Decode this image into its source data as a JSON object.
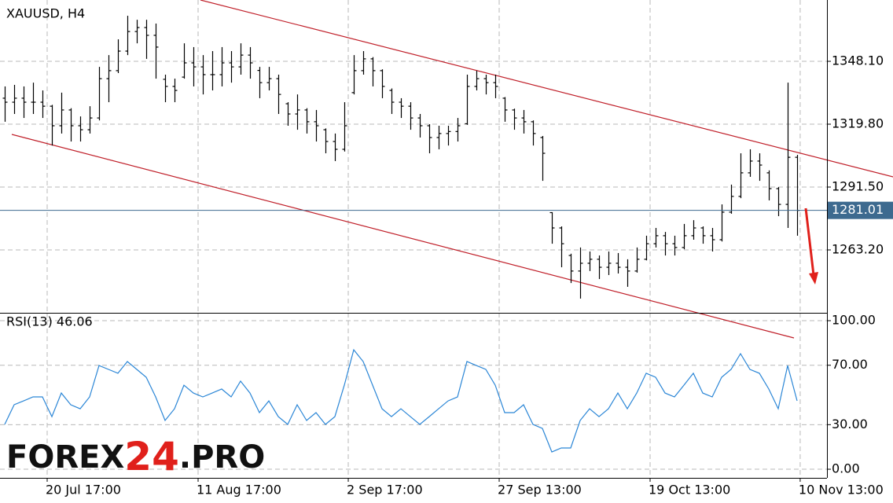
{
  "chart_data": [
    {
      "type": "ohlc",
      "title": "XAUUSD, H4",
      "color": "#000000",
      "ohlc": [
        [
          1331.5,
          1336.8,
          1320.9,
          1329.7
        ],
        [
          1329.7,
          1337.5,
          1324.4,
          1331.5
        ],
        [
          1331.5,
          1336.8,
          1322.6,
          1329.7
        ],
        [
          1329.7,
          1338.5,
          1324.4,
          1329.7
        ],
        [
          1329.7,
          1335.0,
          1322.6,
          1327.9
        ],
        [
          1327.9,
          1328.5,
          1310.2,
          1319.1
        ],
        [
          1319.1,
          1334.0,
          1315.6,
          1326.2
        ],
        [
          1326.2,
          1327.0,
          1312.0,
          1319.1
        ],
        [
          1319.1,
          1323.3,
          1312.0,
          1317.3
        ],
        [
          1317.3,
          1327.9,
          1315.6,
          1322.6
        ],
        [
          1322.6,
          1345.6,
          1321.5,
          1340.3
        ],
        [
          1340.3,
          1350.9,
          1329.7,
          1343.9
        ],
        [
          1343.9,
          1358.0,
          1342.8,
          1352.7
        ],
        [
          1352.7,
          1368.6,
          1350.9,
          1361.5
        ],
        [
          1361.5,
          1366.8,
          1356.2,
          1363.3
        ],
        [
          1363.3,
          1366.8,
          1349.2,
          1359.8
        ],
        [
          1359.8,
          1365.1,
          1340.3,
          1354.5
        ],
        [
          1340.0,
          1342.1,
          1329.7,
          1336.8
        ],
        [
          1336.8,
          1340.3,
          1329.7,
          1335.0
        ],
        [
          1341.0,
          1356.2,
          1340.3,
          1347.4
        ],
        [
          1347.4,
          1354.5,
          1336.8,
          1345.6
        ],
        [
          1345.6,
          1350.9,
          1333.2,
          1342.1
        ],
        [
          1342.1,
          1352.7,
          1335.0,
          1342.1
        ],
        [
          1342.1,
          1354.5,
          1336.8,
          1347.4
        ],
        [
          1347.4,
          1352.7,
          1338.5,
          1345.6
        ],
        [
          1345.6,
          1356.2,
          1342.1,
          1350.9
        ],
        [
          1350.9,
          1354.5,
          1340.3,
          1347.4
        ],
        [
          1344.0,
          1345.6,
          1331.5,
          1338.5
        ],
        [
          1338.5,
          1345.6,
          1335.0,
          1340.3
        ],
        [
          1340.3,
          1342.1,
          1324.4,
          1333.2
        ],
        [
          1329.0,
          1329.7,
          1319.1,
          1324.4
        ],
        [
          1324.4,
          1333.2,
          1317.3,
          1326.2
        ],
        [
          1326.2,
          1327.0,
          1315.6,
          1320.9
        ],
        [
          1320.9,
          1326.2,
          1312.0,
          1319.1
        ],
        [
          1317.3,
          1317.9,
          1306.7,
          1312.0
        ],
        [
          1312.0,
          1315.6,
          1303.2,
          1308.5
        ],
        [
          1308.5,
          1329.7,
          1307.5,
          1319.1
        ],
        [
          1334.0,
          1350.9,
          1333.2,
          1343.9
        ],
        [
          1343.9,
          1352.7,
          1342.1,
          1349.2
        ],
        [
          1349.2,
          1350.0,
          1336.8,
          1343.9
        ],
        [
          1343.9,
          1344.5,
          1331.5,
          1336.8
        ],
        [
          1335.0,
          1335.9,
          1324.4,
          1329.7
        ],
        [
          1329.7,
          1331.5,
          1322.6,
          1327.9
        ],
        [
          1327.9,
          1329.7,
          1317.3,
          1322.6
        ],
        [
          1322.6,
          1324.4,
          1313.8,
          1319.1
        ],
        [
          1319.1,
          1319.8,
          1306.7,
          1313.8
        ],
        [
          1313.8,
          1319.1,
          1308.5,
          1315.6
        ],
        [
          1315.6,
          1319.1,
          1310.2,
          1316.5
        ],
        [
          1316.5,
          1322.6,
          1312.0,
          1319.1
        ],
        [
          1320.0,
          1342.1,
          1319.5,
          1336.8
        ],
        [
          1336.8,
          1343.9,
          1335.0,
          1340.3
        ],
        [
          1340.3,
          1342.1,
          1333.2,
          1338.5
        ],
        [
          1338.5,
          1342.1,
          1331.5,
          1336.8
        ],
        [
          1331.5,
          1332.0,
          1320.9,
          1326.2
        ],
        [
          1326.2,
          1326.8,
          1317.3,
          1322.6
        ],
        [
          1322.6,
          1326.2,
          1315.6,
          1320.9
        ],
        [
          1320.9,
          1321.5,
          1310.2,
          1315.6
        ],
        [
          1313.8,
          1314.5,
          1294.3,
          1306.7
        ],
        [
          1280.0,
          1280.2,
          1266.0,
          1273.1
        ],
        [
          1273.1,
          1273.8,
          1255.4,
          1266.0
        ],
        [
          1260.7,
          1261.5,
          1248.3,
          1253.7
        ],
        [
          1253.7,
          1264.3,
          1241.3,
          1257.2
        ],
        [
          1257.2,
          1262.5,
          1253.7,
          1259.0
        ],
        [
          1259.0,
          1260.7,
          1250.1,
          1255.4
        ],
        [
          1255.4,
          1262.5,
          1251.9,
          1257.2
        ],
        [
          1257.2,
          1261.8,
          1252.6,
          1255.4
        ],
        [
          1255.4,
          1259.0,
          1246.6,
          1253.7
        ],
        [
          1253.7,
          1264.3,
          1253.0,
          1259.0
        ],
        [
          1259.0,
          1269.6,
          1258.5,
          1266.0
        ],
        [
          1266.0,
          1273.1,
          1264.3,
          1269.6
        ],
        [
          1269.6,
          1271.3,
          1260.7,
          1266.0
        ],
        [
          1266.0,
          1269.6,
          1260.7,
          1264.3
        ],
        [
          1264.3,
          1274.9,
          1263.5,
          1269.6
        ],
        [
          1269.6,
          1276.6,
          1267.8,
          1273.1
        ],
        [
          1273.1,
          1273.8,
          1266.0,
          1269.6
        ],
        [
          1269.6,
          1273.1,
          1262.5,
          1267.8
        ],
        [
          1267.8,
          1283.7,
          1267.0,
          1280.2
        ],
        [
          1280.2,
          1292.6,
          1279.5,
          1287.3
        ],
        [
          1287.3,
          1306.7,
          1286.5,
          1297.9
        ],
        [
          1297.9,
          1308.5,
          1296.1,
          1303.2
        ],
        [
          1303.2,
          1306.7,
          1294.3,
          1301.4
        ],
        [
          1297.9,
          1299.0,
          1285.5,
          1290.8
        ],
        [
          1290.8,
          1291.5,
          1278.4,
          1283.7
        ],
        [
          1283.7,
          1338.5,
          1273.1,
          1304.9
        ],
        [
          1304.9,
          1306.0,
          1269.6,
          1281.01
        ]
      ],
      "ylim": [
        1234.9,
        1375.7
      ],
      "yticks": [
        {
          "value": 1263.2,
          "label": "1263.20"
        },
        {
          "value": 1291.5,
          "label": "1291.50"
        },
        {
          "value": 1319.8,
          "label": "1319.80"
        },
        {
          "value": 1348.1,
          "label": "1348.10"
        }
      ],
      "grid": true,
      "last_price": 1281.01,
      "last_price_color": "#3d6a8f"
    },
    {
      "type": "line",
      "title": "RSI(13) 46.06",
      "color": "#2b86d6",
      "values": [
        30.2,
        43.4,
        46.0,
        48.7,
        48.7,
        35.4,
        51.3,
        43.4,
        40.7,
        48.7,
        69.8,
        67.2,
        64.6,
        72.5,
        67.2,
        61.9,
        48.7,
        32.8,
        40.7,
        56.6,
        51.3,
        48.7,
        51.3,
        54.0,
        48.7,
        59.3,
        51.3,
        38.1,
        46.0,
        35.4,
        30.2,
        43.4,
        32.8,
        38.1,
        30.2,
        35.4,
        56.6,
        80.4,
        72.5,
        56.6,
        40.7,
        35.4,
        40.7,
        35.4,
        30.2,
        35.4,
        40.7,
        46.0,
        48.7,
        72.5,
        69.8,
        67.2,
        56.6,
        38.1,
        38.1,
        43.4,
        30.2,
        27.5,
        11.6,
        14.3,
        14.3,
        32.8,
        40.7,
        35.4,
        40.7,
        51.3,
        40.7,
        51.3,
        64.6,
        61.9,
        51.3,
        48.7,
        56.6,
        64.6,
        51.3,
        48.7,
        61.9,
        67.2,
        77.8,
        67.2,
        64.6,
        54.0,
        40.7,
        69.8,
        46.06
      ],
      "ylim": [
        -5.8,
        105.3
      ],
      "yticks": [
        {
          "value": 0,
          "label": "0.00"
        },
        {
          "value": 30,
          "label": "30.00"
        },
        {
          "value": 70,
          "label": "70.00"
        },
        {
          "value": 100,
          "label": "100.00"
        }
      ],
      "xlim": [
        -0.5,
        87.17
      ],
      "xticks": [
        {
          "value": 4.5,
          "label": "20 Jul 17:00"
        },
        {
          "value": 20.5,
          "label": "11 Aug 17:00"
        },
        {
          "value": 36.42,
          "label": "2 Sep 17:00"
        },
        {
          "value": 52.42,
          "label": "27 Sep 13:00"
        },
        {
          "value": 68.42,
          "label": "19 Oct 13:00"
        },
        {
          "value": 84.33,
          "label": "10 Nov 13:00"
        }
      ],
      "grid": true
    }
  ],
  "watermark": {
    "part1": "FOREX",
    "part2": "24",
    "part3": ".PRO"
  }
}
